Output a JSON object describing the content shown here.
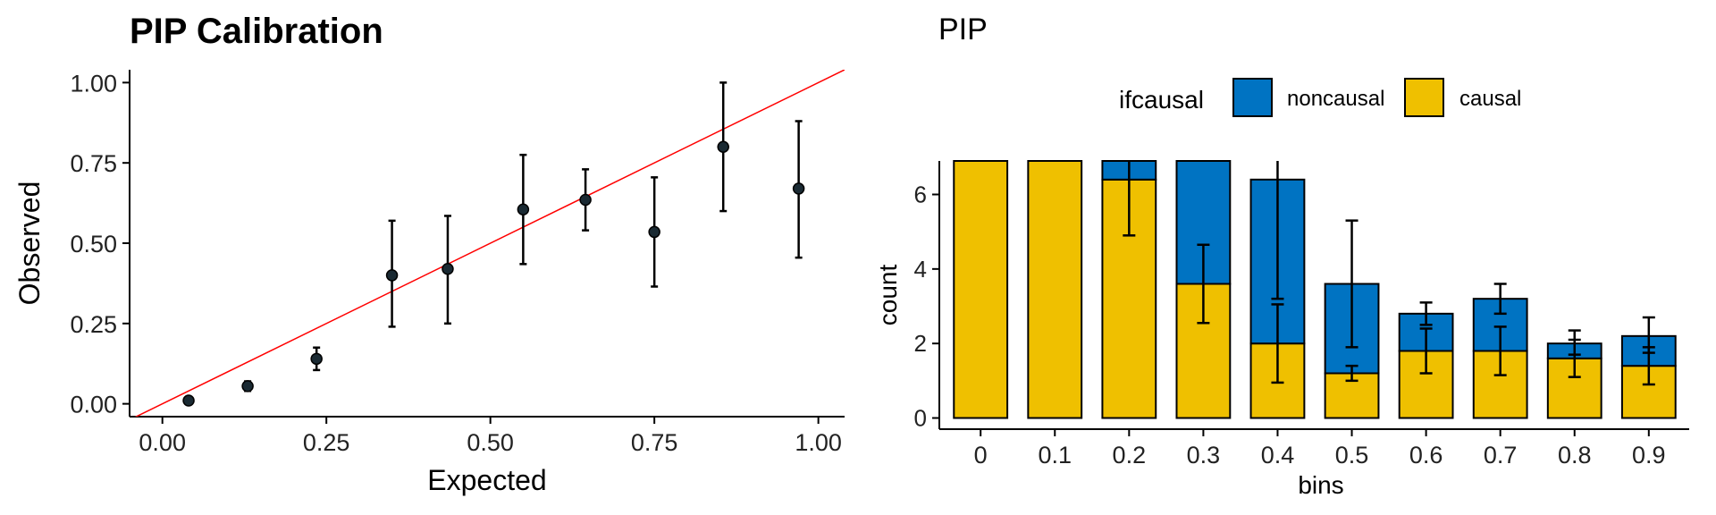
{
  "chart_data": [
    {
      "type": "scatter",
      "title": "PIP Calibration",
      "xlabel": "Expected",
      "ylabel": "Observed",
      "xlim": [
        -0.05,
        1.04
      ],
      "ylim": [
        -0.04,
        1.04
      ],
      "xticks": [
        "0.00",
        "0.25",
        "0.50",
        "0.75",
        "1.00"
      ],
      "yticks": [
        "0.00",
        "0.25",
        "0.50",
        "0.75",
        "1.00"
      ],
      "xtick_values": [
        0,
        0.25,
        0.5,
        0.75,
        1.0
      ],
      "ytick_values": [
        0,
        0.25,
        0.5,
        0.75,
        1.0
      ],
      "reference_line": {
        "slope": 1,
        "intercept": 0,
        "color": "#ff0000"
      },
      "point_color": "#1a2a33",
      "points": [
        {
          "x": 0.04,
          "y": 0.01,
          "lo": 0.01,
          "hi": 0.01
        },
        {
          "x": 0.13,
          "y": 0.055,
          "lo": 0.04,
          "hi": 0.07
        },
        {
          "x": 0.235,
          "y": 0.14,
          "lo": 0.105,
          "hi": 0.175
        },
        {
          "x": 0.35,
          "y": 0.4,
          "lo": 0.24,
          "hi": 0.57
        },
        {
          "x": 0.435,
          "y": 0.42,
          "lo": 0.25,
          "hi": 0.585
        },
        {
          "x": 0.55,
          "y": 0.605,
          "lo": 0.435,
          "hi": 0.775
        },
        {
          "x": 0.645,
          "y": 0.635,
          "lo": 0.54,
          "hi": 0.73
        },
        {
          "x": 0.75,
          "y": 0.535,
          "lo": 0.365,
          "hi": 0.705
        },
        {
          "x": 0.855,
          "y": 0.8,
          "lo": 0.6,
          "hi": 1.0
        },
        {
          "x": 0.97,
          "y": 0.67,
          "lo": 0.455,
          "hi": 0.88
        }
      ]
    },
    {
      "type": "bar",
      "stacked": true,
      "title": "PIP",
      "xlabel": "bins",
      "ylabel": "count",
      "ylim": [
        -0.3,
        6.9
      ],
      "yticks": [
        "0",
        "2",
        "4",
        "6"
      ],
      "ytick_values": [
        0,
        2,
        4,
        6
      ],
      "categories": [
        "0",
        "0.1",
        "0.2",
        "0.3",
        "0.4",
        "0.5",
        "0.6",
        "0.7",
        "0.8",
        "0.9"
      ],
      "legend_title": "ifcausal",
      "legend_position": "top",
      "series": [
        {
          "name": "causal",
          "color": "#efc000",
          "values": [
            6.9,
            6.9,
            6.4,
            3.6,
            2.0,
            1.2,
            1.8,
            1.8,
            1.6,
            1.4
          ],
          "err_lo": [
            null,
            null,
            4.9,
            2.55,
            0.95,
            1.0,
            1.2,
            1.15,
            1.1,
            0.9
          ],
          "err_hi": [
            null,
            null,
            6.9,
            4.65,
            3.05,
            1.4,
            2.4,
            2.45,
            2.1,
            1.9
          ]
        },
        {
          "name": "noncausal",
          "color": "#0073c2",
          "values": [
            0,
            0,
            0.5,
            3.3,
            4.4,
            2.4,
            1.0,
            1.4,
            0.4,
            0.8
          ],
          "err_lo": [
            null,
            null,
            null,
            null,
            3.2,
            1.9,
            2.5,
            2.8,
            1.7,
            1.75
          ],
          "err_hi": [
            null,
            null,
            null,
            null,
            6.9,
            5.3,
            3.1,
            3.6,
            2.35,
            2.7
          ]
        }
      ]
    }
  ]
}
